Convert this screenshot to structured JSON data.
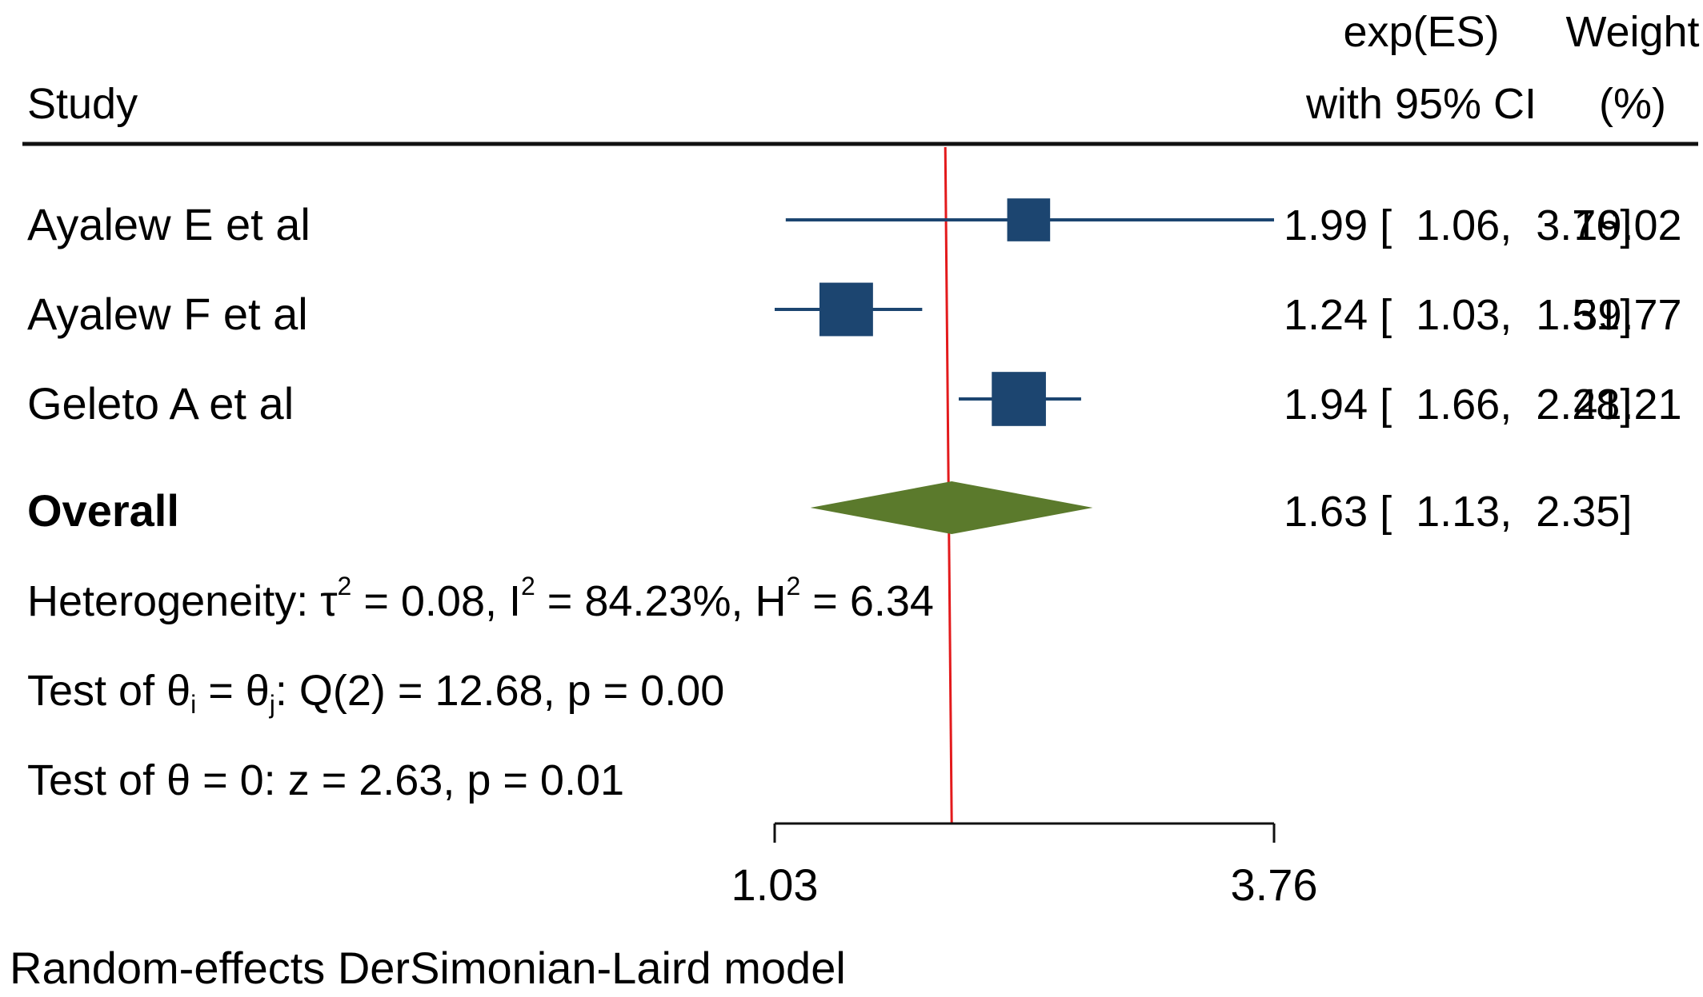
{
  "chart_data": {
    "type": "forest",
    "header": {
      "study": "Study",
      "es_line1": "exp(ES)",
      "es_line2": "with 95% CI",
      "weight_line1": "Weight",
      "weight_line2": "(%)"
    },
    "studies": [
      {
        "name": "Ayalew E et al",
        "es": 1.99,
        "lo": 1.06,
        "hi": 3.76,
        "text": "1.99 [  1.06,  3.76]",
        "weight": "19.02",
        "w": 19.02
      },
      {
        "name": "Ayalew F et al",
        "es": 1.24,
        "lo": 1.03,
        "hi": 1.51,
        "text": "1.24 [  1.03,  1.51]",
        "weight": "39.77",
        "w": 39.77
      },
      {
        "name": "Geleto A et al",
        "es": 1.94,
        "lo": 1.66,
        "hi": 2.28,
        "text": "1.94 [  1.66,  2.28]",
        "weight": "41.21",
        "w": 41.21
      }
    ],
    "overall": {
      "name": "Overall",
      "es": 1.63,
      "lo": 1.13,
      "hi": 2.35,
      "text": "1.63 [  1.13,  2.35]"
    },
    "heterogeneity": {
      "prefix": "Heterogeneity: τ",
      "tau_sup": "2",
      "tau_val": " = 0.08, I",
      "i_sup": "2",
      "i_val": " = 84.23%, H",
      "h_sup": "2",
      "h_val": " = 6.34"
    },
    "test_q": {
      "p1": "Test of θ",
      "s1": "i",
      "p2": " = θ",
      "s2": "j",
      "p3": ": Q(2) = 12.68, p = 0.00"
    },
    "test_z": "Test of θ = 0: z = 2.63, p = 0.01",
    "axis": {
      "ticks": [
        1.03,
        3.76
      ],
      "tick_labels": [
        "1.03",
        "3.76"
      ],
      "scale": "log"
    },
    "reference_value": 1.63,
    "footnote": "Random-effects DerSimonian-Laird model",
    "colors": {
      "study": "#1c4570",
      "overall": "#5b7a2c",
      "reference": "#e31a1c",
      "text": "#111111"
    }
  }
}
